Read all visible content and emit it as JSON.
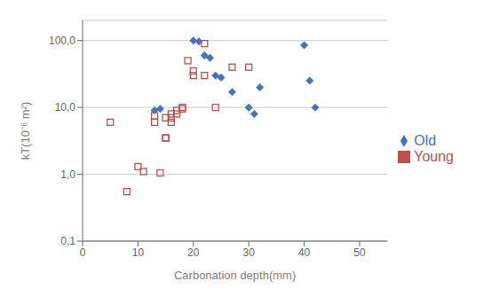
{
  "chart_data": {
    "type": "scatter",
    "xlabel": "Carbonation depth(mm)",
    "ylabel": "kT(10⁻⁶ m²)",
    "series": [
      {
        "name": "Old",
        "color": "#4472C4",
        "marker": "diamond",
        "x": [
          13,
          14,
          20,
          21,
          22,
          23,
          24,
          25,
          27,
          30,
          31,
          32,
          40,
          41,
          42
        ],
        "values": [
          9,
          9.5,
          100,
          97,
          60,
          55,
          30,
          28,
          17,
          10,
          8,
          20,
          85,
          25,
          10
        ]
      },
      {
        "name": "Young",
        "color": "#C0504D",
        "marker": "open_square",
        "x": [
          5,
          8,
          10,
          11,
          13,
          13,
          14,
          15,
          15,
          15,
          16,
          16,
          16,
          17,
          17,
          18,
          18,
          19,
          20,
          20,
          22,
          22,
          24,
          27,
          30
        ],
        "values": [
          6,
          0.55,
          1.3,
          1.1,
          6,
          7.5,
          1.05,
          3.5,
          3.5,
          7,
          6,
          7,
          8,
          9,
          8,
          9.5,
          10,
          50,
          30,
          35,
          30,
          90,
          10,
          40,
          40
        ]
      }
    ],
    "xlim": [
      0,
      55
    ],
    "ylim": [
      0.1,
      200
    ],
    "xticks": [
      0,
      10,
      20,
      30,
      40,
      50
    ],
    "yticks": [
      {
        "value": 0.1,
        "label": "0,1"
      },
      {
        "value": 1.0,
        "label": "1,0"
      },
      {
        "value": 10.0,
        "label": "10,0"
      },
      {
        "value": 100.0,
        "label": "100,0"
      }
    ],
    "log": "y",
    "grid": "y",
    "legend": "right"
  }
}
